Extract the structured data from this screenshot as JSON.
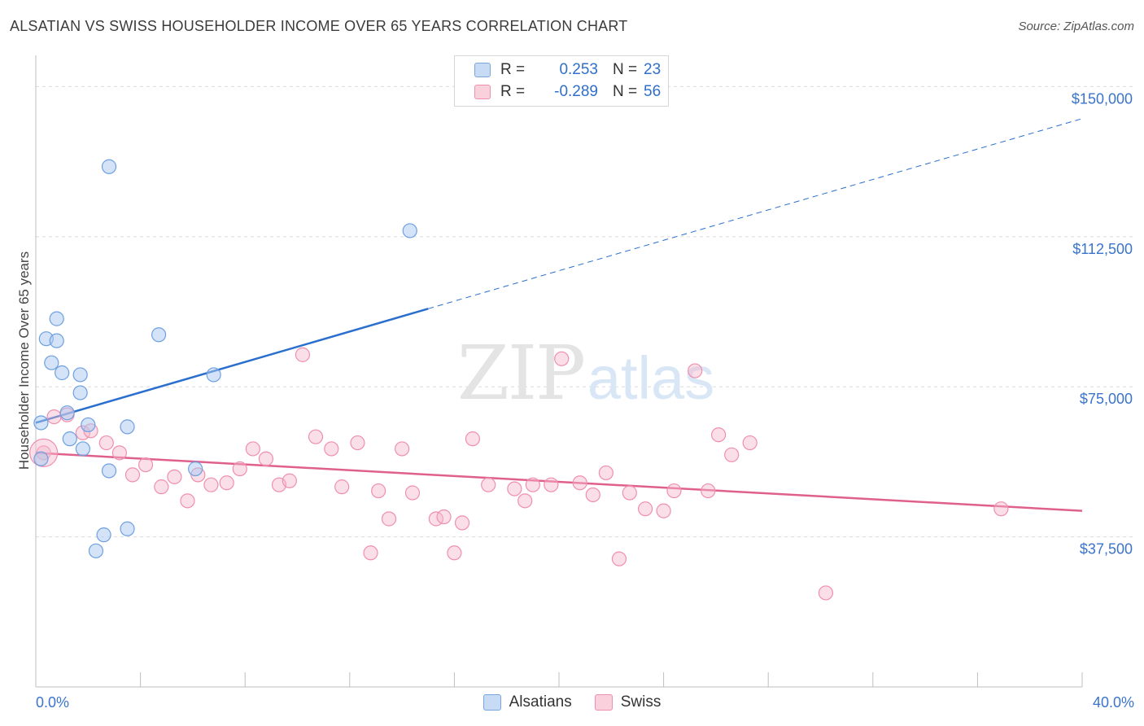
{
  "header": {
    "title": "ALSATIAN VS SWISS HOUSEHOLDER INCOME OVER 65 YEARS CORRELATION CHART",
    "source": "Source: ZipAtlas.com"
  },
  "watermark": {
    "zip": "ZIP",
    "atlas": "atlas"
  },
  "legend": {
    "rows": [
      {
        "r_label": "R =",
        "r_value": "0.253",
        "n_label": "N =",
        "n_value": "23",
        "color": "#a9c8f0"
      },
      {
        "r_label": "R =",
        "r_value": "-0.289",
        "n_label": "N =",
        "n_value": "56",
        "color": "#f6b8cc"
      }
    ]
  },
  "bottom_legend": {
    "items": [
      "Alsatians",
      "Swiss"
    ]
  },
  "chart_data": {
    "type": "scatter",
    "ylabel": "Householder Income Over 65 years",
    "x_tick_labels": [
      "0.0%",
      "40.0%"
    ],
    "y_tick_labels": [
      "$150,000",
      "$112,500",
      "$75,000",
      "$37,500"
    ],
    "xlim": [
      0,
      40
    ],
    "ylim": [
      0,
      157000
    ],
    "y_ticks": [
      150000,
      112500,
      75000,
      37500
    ],
    "grid": true,
    "legend_position": "top-center",
    "colors": {
      "alsatians": "#6ea0e0",
      "swiss": "#ef8fae",
      "alsatians_line": "#2a6fce",
      "swiss_line": "#e0608d",
      "tick_label": "#3a74cc"
    },
    "series": [
      {
        "name": "Alsatians",
        "points": [
          [
            0.2,
            57000
          ],
          [
            0.2,
            66000
          ],
          [
            0.4,
            87000
          ],
          [
            0.8,
            92000
          ],
          [
            0.8,
            86500
          ],
          [
            0.6,
            81000
          ],
          [
            1.0,
            78500
          ],
          [
            1.2,
            68500
          ],
          [
            1.3,
            62000
          ],
          [
            1.7,
            78000
          ],
          [
            1.7,
            73500
          ],
          [
            1.8,
            59500
          ],
          [
            2.0,
            65500
          ],
          [
            2.3,
            34000
          ],
          [
            2.6,
            38000
          ],
          [
            2.8,
            130000
          ],
          [
            2.8,
            54000
          ],
          [
            3.5,
            65000
          ],
          [
            3.5,
            39500
          ],
          [
            4.7,
            88000
          ],
          [
            6.1,
            54500
          ],
          [
            6.8,
            78000
          ],
          [
            14.3,
            114000
          ]
        ],
        "trend": {
          "x": [
            0,
            15
          ],
          "y": [
            66000,
            94500
          ]
        },
        "trend_extension": {
          "x": [
            15,
            40
          ],
          "y": [
            94500,
            142000
          ]
        }
      },
      {
        "name": "Swiss",
        "points": [
          [
            0.3,
            58500
          ],
          [
            0.7,
            67500
          ],
          [
            1.2,
            68000
          ],
          [
            1.8,
            63500
          ],
          [
            2.1,
            64000
          ],
          [
            2.7,
            61000
          ],
          [
            3.2,
            58500
          ],
          [
            3.7,
            53000
          ],
          [
            4.2,
            55500
          ],
          [
            4.8,
            50000
          ],
          [
            5.3,
            52500
          ],
          [
            5.8,
            46500
          ],
          [
            6.2,
            53000
          ],
          [
            6.7,
            50500
          ],
          [
            7.3,
            51000
          ],
          [
            7.8,
            54500
          ],
          [
            8.3,
            59500
          ],
          [
            8.8,
            57000
          ],
          [
            9.3,
            50500
          ],
          [
            9.7,
            51500
          ],
          [
            10.2,
            83000
          ],
          [
            10.7,
            62500
          ],
          [
            11.3,
            59500
          ],
          [
            11.7,
            50000
          ],
          [
            12.3,
            61000
          ],
          [
            12.8,
            33500
          ],
          [
            13.1,
            49000
          ],
          [
            13.5,
            42000
          ],
          [
            14.0,
            59500
          ],
          [
            14.4,
            48500
          ],
          [
            15.3,
            42000
          ],
          [
            15.6,
            42500
          ],
          [
            16.0,
            33500
          ],
          [
            16.3,
            41000
          ],
          [
            16.7,
            62000
          ],
          [
            17.3,
            50500
          ],
          [
            18.3,
            49500
          ],
          [
            18.7,
            46500
          ],
          [
            19.0,
            50500
          ],
          [
            19.7,
            50500
          ],
          [
            20.1,
            82000
          ],
          [
            20.8,
            51000
          ],
          [
            21.3,
            48000
          ],
          [
            21.8,
            53500
          ],
          [
            22.3,
            32000
          ],
          [
            22.7,
            48500
          ],
          [
            23.3,
            44500
          ],
          [
            24.0,
            44000
          ],
          [
            24.4,
            49000
          ],
          [
            25.7,
            49000
          ],
          [
            25.2,
            79000
          ],
          [
            26.1,
            63000
          ],
          [
            26.6,
            58000
          ],
          [
            27.3,
            61000
          ],
          [
            30.2,
            23500
          ],
          [
            36.9,
            44500
          ]
        ],
        "trend": {
          "x": [
            0,
            40
          ],
          "y": [
            58500,
            44000
          ]
        }
      }
    ]
  }
}
